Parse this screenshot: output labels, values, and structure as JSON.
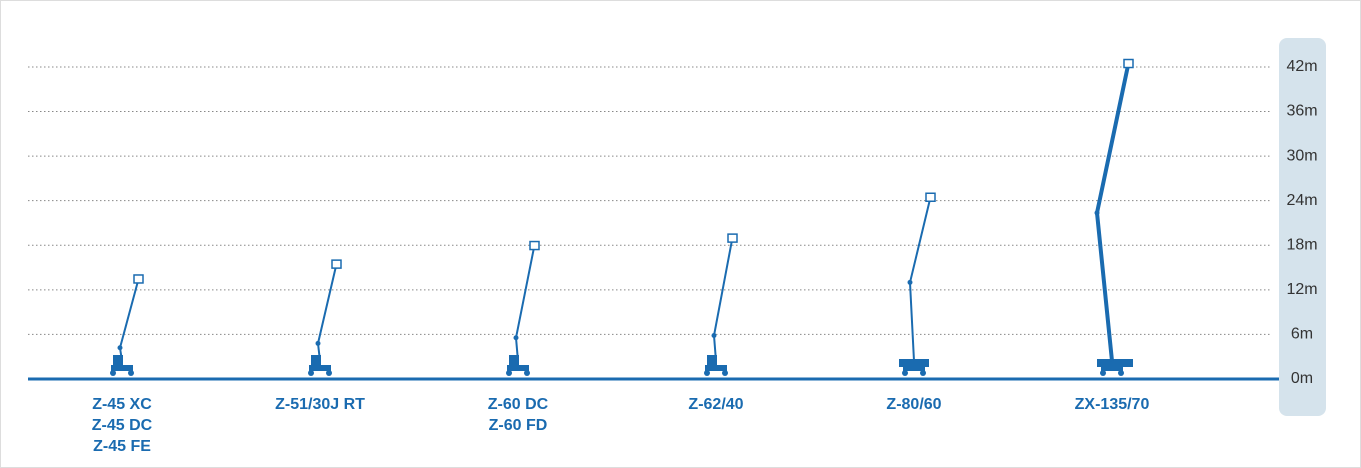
{
  "chart_data": {
    "type": "lift",
    "categories": [
      [
        "Z-45 XC",
        "Z-45 DC",
        "Z-45 FE"
      ],
      [
        "Z-51/30J RT"
      ],
      [
        "Z-60 DC",
        "Z-60 FD"
      ],
      [
        "Z-62/40"
      ],
      [
        "Z-80/60"
      ],
      [
        "ZX-135/70"
      ]
    ],
    "values": [
      14,
      16,
      18.5,
      19.5,
      25,
      43
    ],
    "color": "#1a6bb0",
    "ylim": [
      0,
      44
    ],
    "yticks": [
      {
        "value": 0,
        "label": "0m"
      },
      {
        "value": 6,
        "label": "6m"
      },
      {
        "value": 12,
        "label": "12m"
      },
      {
        "value": 18,
        "label": "18m"
      },
      {
        "value": 24,
        "label": "24m"
      },
      {
        "value": 30,
        "label": "30m"
      },
      {
        "value": 36,
        "label": "36m"
      },
      {
        "value": 42,
        "label": "42m"
      }
    ],
    "grid": true
  }
}
